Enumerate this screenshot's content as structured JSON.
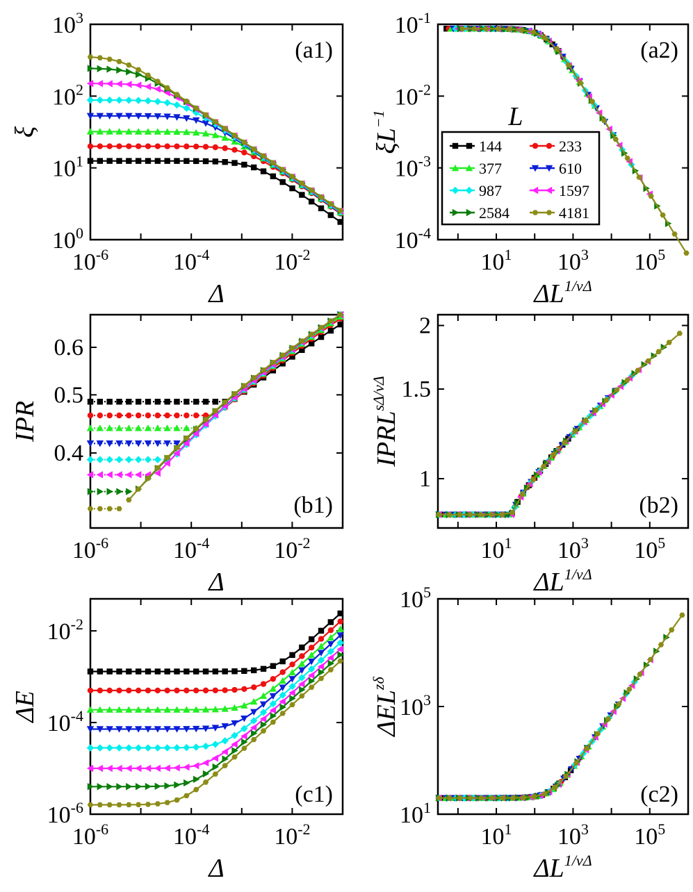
{
  "figure": {
    "legend_title": "L",
    "series": [
      {
        "name": "144",
        "color": "#000000",
        "marker": "square"
      },
      {
        "name": "233",
        "color": "#ee1111",
        "marker": "circle"
      },
      {
        "name": "377",
        "color": "#22ee22",
        "marker": "triangle-up"
      },
      {
        "name": "610",
        "color": "#0a1fd6",
        "marker": "triangle-down"
      },
      {
        "name": "987",
        "color": "#00eeee",
        "marker": "diamond"
      },
      {
        "name": "1597",
        "color": "#ff22ff",
        "marker": "triangle-left"
      },
      {
        "name": "2584",
        "color": "#0b7d0b",
        "marker": "triangle-right"
      },
      {
        "name": "4181",
        "color": "#8c8c18",
        "marker": "hexagon"
      }
    ]
  },
  "chart_data": [
    {
      "panel": "(a1)",
      "type": "line",
      "x_scale": "log",
      "y_scale": "log",
      "xlabel": "Δ",
      "ylabel": "ξ",
      "xlim": [
        1e-06,
        0.1
      ],
      "ylim": [
        1,
        1000
      ],
      "x_ticks": [
        {
          "base": "10",
          "exp": "-6"
        },
        {
          "base": "10",
          "exp": "-4"
        },
        {
          "base": "10",
          "exp": "-2"
        }
      ],
      "y_ticks": [
        {
          "base": "10",
          "exp": "0"
        },
        {
          "base": "10",
          "exp": "1"
        },
        {
          "base": "10",
          "exp": "2"
        },
        {
          "base": "10",
          "exp": "3"
        }
      ],
      "series_values": [
        {
          "name": "144",
          "plateau": 12.5,
          "xc": 0.0018,
          "slope": 0.5
        },
        {
          "name": "233",
          "plateau": 20,
          "xc": 0.0012,
          "slope": 0.5
        },
        {
          "name": "377",
          "plateau": 32,
          "xc": 0.0005,
          "slope": 0.5
        },
        {
          "name": "610",
          "plateau": 53,
          "xc": 0.00018,
          "slope": 0.5
        },
        {
          "name": "987",
          "plateau": 88,
          "xc": 6.8e-05,
          "slope": 0.5
        },
        {
          "name": "1597",
          "plateau": 150,
          "xc": 2.5e-05,
          "slope": 0.5
        },
        {
          "name": "2584",
          "plateau": 245,
          "xc": 9.5e-06,
          "slope": 0.5
        },
        {
          "name": "4181",
          "plateau": 360,
          "xc": 4.5e-06,
          "slope": 0.5
        }
      ]
    },
    {
      "panel": "(a2)",
      "type": "line",
      "x_scale": "log",
      "y_scale": "log",
      "xlabel": "ΔL",
      "xlabel_sup": "1/νΔ",
      "ylabel": "ξL",
      "ylabel_sup": "−1",
      "xlim": [
        0.3,
        1000000
      ],
      "ylim": [
        0.0001,
        0.1
      ],
      "x_ticks": [
        {
          "base": "10",
          "exp": "1"
        },
        {
          "base": "10",
          "exp": "3"
        },
        {
          "base": "10",
          "exp": "5"
        }
      ],
      "y_ticks": [
        {
          "base": "10",
          "exp": "-4"
        },
        {
          "base": "10",
          "exp": "-3"
        },
        {
          "base": "10",
          "exp": "-2"
        },
        {
          "base": "10",
          "exp": "-1"
        }
      ],
      "collapse": {
        "plateau": 0.087,
        "xc": 180,
        "slope": 0.5,
        "x_end": 900000
      }
    },
    {
      "panel": "(b1)",
      "type": "line",
      "x_scale": "log",
      "y_scale": "log",
      "xlabel": "Δ",
      "ylabel": "IPR",
      "xlim": [
        1e-06,
        0.1
      ],
      "ylim": [
        0.3,
        0.68
      ],
      "y_ticks": [
        {
          "label": "0.4",
          "value": 0.4
        },
        {
          "label": "0.5",
          "value": 0.5
        },
        {
          "label": "0.6",
          "value": 0.6
        }
      ],
      "x_ticks": [
        {
          "base": "10",
          "exp": "-6"
        },
        {
          "base": "10",
          "exp": "-4"
        },
        {
          "base": "10",
          "exp": "-2"
        }
      ],
      "series_values": [
        {
          "name": "144",
          "plateau": 0.487,
          "end": 0.655,
          "x_rise": 0.0006
        },
        {
          "name": "233",
          "plateau": 0.462,
          "end": 0.67,
          "x_rise": 0.0003
        },
        {
          "name": "377",
          "plateau": 0.44,
          "end": 0.675,
          "x_rise": 0.00015
        },
        {
          "name": "610",
          "plateau": 0.415,
          "end": 0.68,
          "x_rise": 8e-05
        },
        {
          "name": "987",
          "plateau": 0.39,
          "end": 0.68,
          "x_rise": 4e-05
        },
        {
          "name": "1597",
          "plateau": 0.368,
          "end": 0.68,
          "x_rise": 2e-05
        },
        {
          "name": "2584",
          "plateau": 0.345,
          "end": 0.68,
          "x_rise": 8e-06
        },
        {
          "name": "4181",
          "plateau": 0.323,
          "end": 0.68,
          "x_rise": 4e-06
        }
      ]
    },
    {
      "panel": "(b2)",
      "type": "line",
      "x_scale": "log",
      "y_scale": "log",
      "xlabel": "ΔL",
      "xlabel_sup": "1/νΔ",
      "ylabel": "IPRL",
      "ylabel_sup": "sΔ/νΔ",
      "xlim": [
        0.3,
        1000000
      ],
      "ylim": [
        0.8,
        2.1
      ],
      "y_ticks": [
        {
          "label": "1",
          "value": 1
        },
        {
          "label": "1.5",
          "value": 1.5
        },
        {
          "label": "2",
          "value": 2
        }
      ],
      "x_ticks": [
        {
          "base": "10",
          "exp": "1"
        },
        {
          "base": "10",
          "exp": "3"
        },
        {
          "base": "10",
          "exp": "5"
        }
      ],
      "collapse": {
        "plateau": 0.85,
        "x_break": 25,
        "end_x": 600000,
        "end_y": 1.93
      }
    },
    {
      "panel": "(c1)",
      "type": "line",
      "x_scale": "log",
      "y_scale": "log",
      "xlabel": "Δ",
      "ylabel": "ΔE",
      "xlim": [
        1e-06,
        0.1
      ],
      "ylim": [
        1e-06,
        0.05
      ],
      "x_ticks": [
        {
          "base": "10",
          "exp": "-6"
        },
        {
          "base": "10",
          "exp": "-4"
        },
        {
          "base": "10",
          "exp": "-2"
        }
      ],
      "y_ticks": [
        {
          "base": "10",
          "exp": "-6"
        },
        {
          "base": "10",
          "exp": "-4"
        },
        {
          "base": "10",
          "exp": "-2"
        }
      ],
      "series_values": [
        {
          "name": "144",
          "plateau": 0.0013,
          "end": 0.024
        },
        {
          "name": "233",
          "plateau": 0.0005,
          "end": 0.016
        },
        {
          "name": "377",
          "plateau": 0.00019,
          "end": 0.011
        },
        {
          "name": "610",
          "plateau": 7.2e-05,
          "end": 0.008
        },
        {
          "name": "987",
          "plateau": 2.8e-05,
          "end": 0.0055
        },
        {
          "name": "1597",
          "plateau": 1e-05,
          "end": 0.004
        },
        {
          "name": "2584",
          "plateau": 4e-06,
          "end": 0.003
        },
        {
          "name": "4181",
          "plateau": 1.6e-06,
          "end": 0.0022
        }
      ]
    },
    {
      "panel": "(c2)",
      "type": "line",
      "x_scale": "log",
      "y_scale": "log",
      "xlabel": "ΔL",
      "xlabel_sup": "1/νΔ",
      "ylabel": "ΔEL",
      "ylabel_sup": "zδ",
      "xlim": [
        0.3,
        1000000
      ],
      "ylim": [
        10,
        100000
      ],
      "x_ticks": [
        {
          "base": "10",
          "exp": "1"
        },
        {
          "base": "10",
          "exp": "3"
        },
        {
          "base": "10",
          "exp": "5"
        }
      ],
      "y_ticks": [
        {
          "base": "10",
          "exp": "1"
        },
        {
          "base": "10",
          "exp": "3"
        },
        {
          "base": "10",
          "exp": "5"
        }
      ],
      "collapse": {
        "plateau": 20,
        "x_break": 15,
        "end_x": 700000,
        "end_y": 50000
      }
    }
  ]
}
